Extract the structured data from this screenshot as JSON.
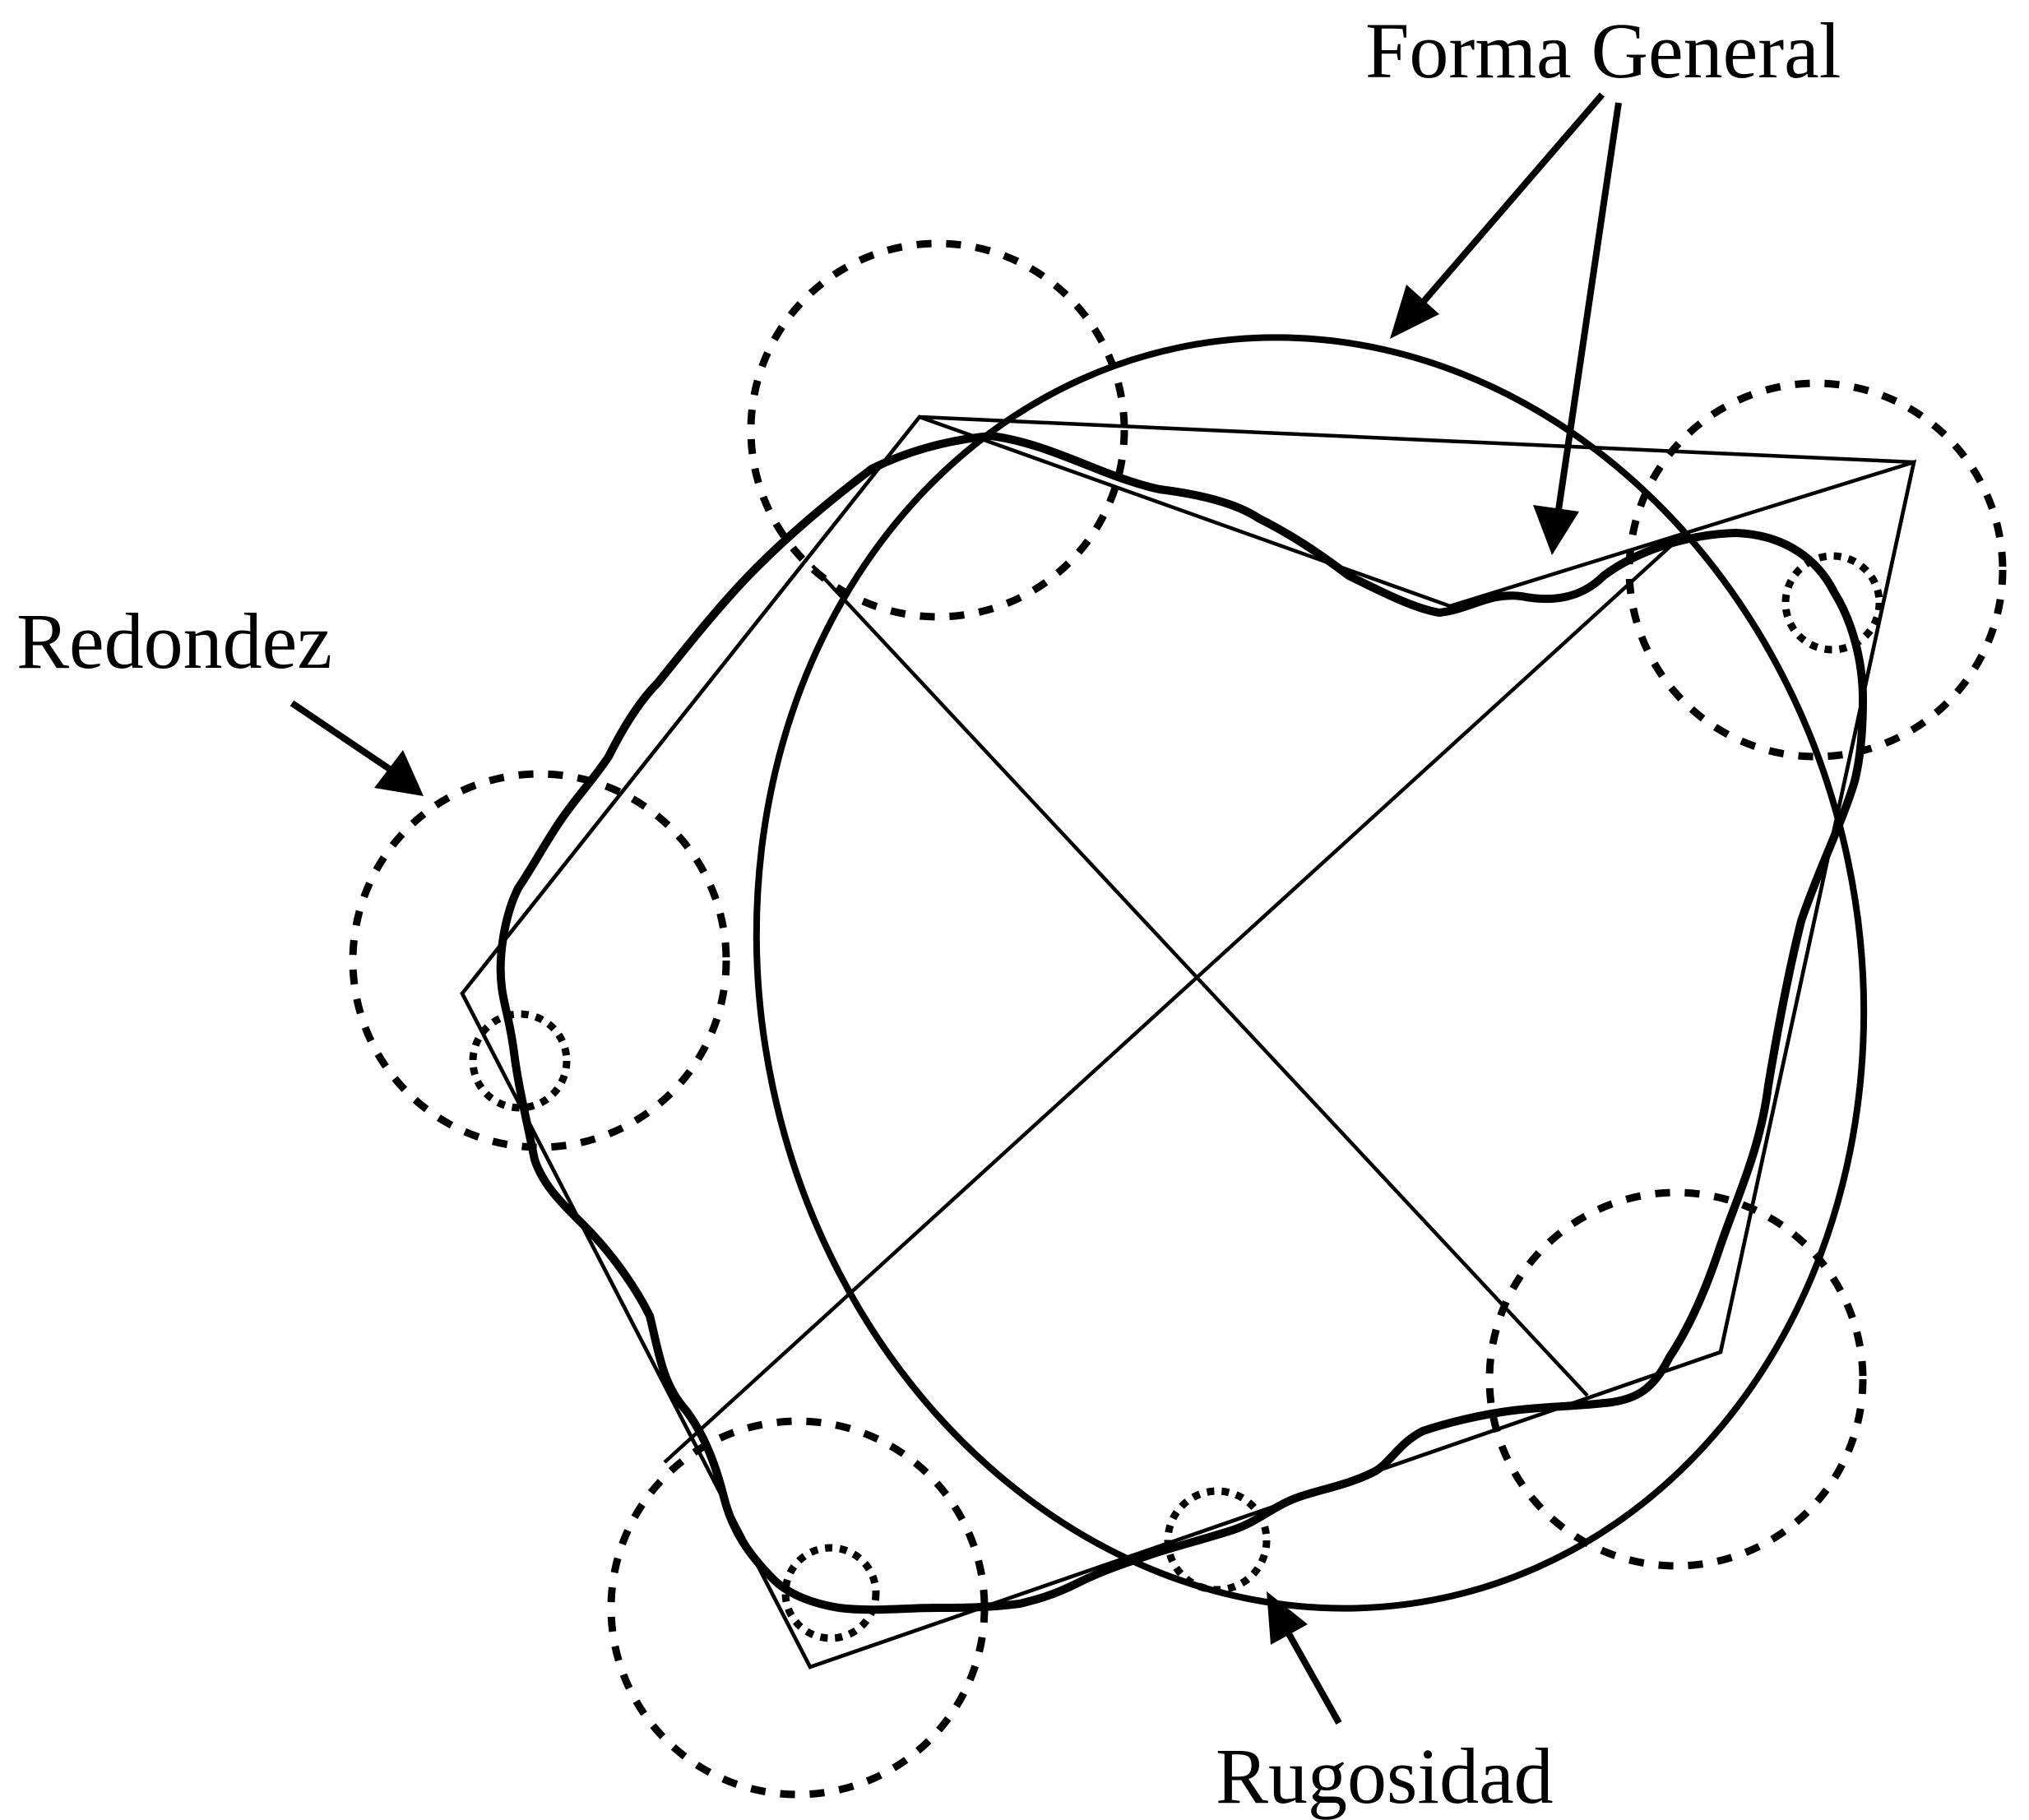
{
  "labels": {
    "general_shape": "Forma General",
    "roundness": "Redondez",
    "roughness": "Rugosidad"
  }
}
